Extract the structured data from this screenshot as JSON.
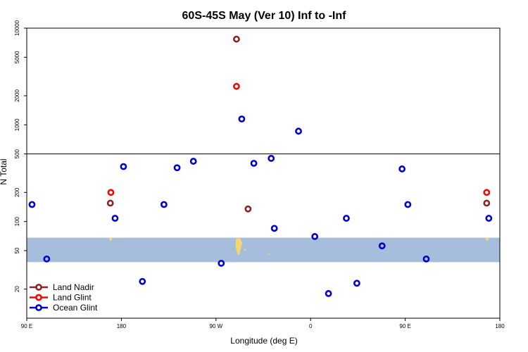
{
  "chart_data": {
    "type": "scatter",
    "title": "60S-45S May (Ver 10)   Inf to -Inf",
    "xlabel": "Longitude (deg E)",
    "ylabel": "N Total",
    "x_axis_note": "longitude shifted so the axis runs 90 E -> 180 -> 90 W -> 0 -> 90 E -> 180; x values below are in degrees E on that continuous scale (90..540)",
    "xlim": [
      90,
      540
    ],
    "ylim": [
      10,
      10000
    ],
    "y_scale": "log",
    "x_ticks": [
      {
        "value": 90,
        "label": "90 E"
      },
      {
        "value": 180,
        "label": "180"
      },
      {
        "value": 270,
        "label": "90 W"
      },
      {
        "value": 360,
        "label": "0"
      },
      {
        "value": 450,
        "label": "90 E"
      },
      {
        "value": 540,
        "label": "180"
      }
    ],
    "y_ticks": [
      {
        "value": 20,
        "label": "20"
      },
      {
        "value": 50,
        "label": "50"
      },
      {
        "value": 100,
        "label": "100"
      },
      {
        "value": 200,
        "label": "200"
      },
      {
        "value": 500,
        "label": "500"
      },
      {
        "value": 1000,
        "label": "1000"
      },
      {
        "value": 2000,
        "label": "2000"
      },
      {
        "value": 5000,
        "label": "5000"
      },
      {
        "value": 10000,
        "label": "10000"
      }
    ],
    "reference_line_y": 500,
    "band": {
      "y_low": 38,
      "y_high": 68,
      "color": "#a6bddb"
    },
    "land_color": "#f5d76e",
    "grid": false,
    "legend_position": "bottom-left",
    "series": [
      {
        "name": "Land Nadir",
        "color": "#8b2323",
        "x": [
          169.5,
          289.5,
          300.5,
          527.5
        ],
        "y": [
          155,
          7700,
          135,
          155
        ]
      },
      {
        "name": "Land Glint",
        "color": "#ff0000",
        "x": [
          170.0,
          289.5,
          527.5
        ],
        "y": [
          200,
          2500,
          200
        ]
      },
      {
        "name": "Ocean Glint",
        "color": "#0000cc",
        "x": [
          95.0,
          109.0,
          174.0,
          182.0,
          200.0,
          220.5,
          233.0,
          248.5,
          275.0,
          294.5,
          306.0,
          322.5,
          325.5,
          348.5,
          364.0,
          377.0,
          394.0,
          404.0,
          428.0,
          447.0,
          452.5,
          470.0,
          529.5
        ],
        "y": [
          150,
          41,
          108,
          370,
          24,
          150,
          360,
          420,
          37,
          1150,
          400,
          450,
          85,
          860,
          70,
          18,
          108,
          23,
          56,
          350,
          150,
          41,
          108
        ]
      }
    ]
  }
}
